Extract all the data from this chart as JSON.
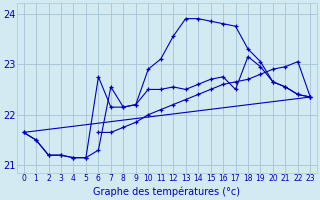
{
  "xlabel": "Graphe des températures (°c)",
  "xlim": [
    -0.5,
    23.5
  ],
  "ylim": [
    20.85,
    24.2
  ],
  "yticks": [
    21,
    22,
    23,
    24
  ],
  "xticks": [
    0,
    1,
    2,
    3,
    4,
    5,
    6,
    7,
    8,
    9,
    10,
    11,
    12,
    13,
    14,
    15,
    16,
    17,
    18,
    19,
    20,
    21,
    22,
    23
  ],
  "bg_color": "#d4eaf2",
  "grid_color": "#aac8d8",
  "line_color": "#0000bb",
  "series1_x": [
    0,
    1,
    2,
    3,
    4,
    5,
    6,
    7,
    8,
    9,
    10,
    11,
    12,
    13,
    14,
    15,
    16,
    17,
    18,
    19,
    20,
    21,
    22,
    23
  ],
  "series1_y": [
    21.65,
    21.5,
    21.2,
    21.2,
    21.15,
    21.15,
    21.3,
    22.55,
    22.15,
    22.2,
    22.5,
    22.5,
    22.55,
    22.5,
    22.6,
    22.7,
    22.75,
    22.5,
    23.15,
    22.95,
    22.65,
    22.55,
    22.4,
    22.35
  ],
  "series2_x": [
    0,
    1,
    2,
    3,
    4,
    5,
    6,
    7,
    8,
    9,
    10,
    11,
    12,
    13,
    14,
    15,
    16,
    17,
    18,
    19,
    20,
    21,
    22,
    23
  ],
  "series2_y": [
    21.65,
    21.5,
    21.2,
    21.2,
    21.15,
    21.15,
    22.75,
    22.15,
    22.15,
    22.2,
    22.9,
    23.1,
    23.55,
    23.9,
    23.9,
    23.85,
    23.8,
    23.75,
    23.3,
    23.05,
    22.65,
    22.55,
    22.4,
    22.35
  ],
  "series3_x": [
    6,
    7,
    8,
    9,
    10,
    11,
    12,
    13,
    14,
    15,
    16,
    17,
    18,
    19,
    20,
    21,
    22,
    23
  ],
  "series3_y": [
    21.65,
    21.65,
    21.75,
    21.85,
    22.0,
    22.1,
    22.2,
    22.3,
    22.4,
    22.5,
    22.6,
    22.65,
    22.7,
    22.8,
    22.9,
    22.95,
    23.05,
    22.35
  ],
  "line4_x": [
    0,
    23
  ],
  "line4_y": [
    21.65,
    22.35
  ]
}
